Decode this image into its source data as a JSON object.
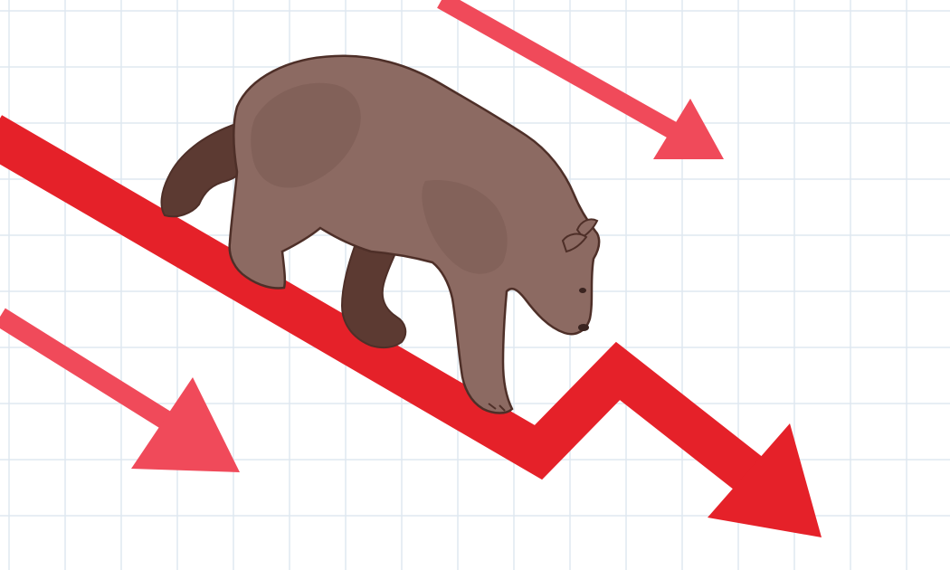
{
  "colors": {
    "background": "#ffffff",
    "grid_line": "#dfe8f0",
    "main_arrow": "#e52129",
    "secondary_arrow": "#f04a5a",
    "bear_body": "#8c6a62",
    "bear_shadow": "#5c3a32",
    "bear_outline": "#4e2f28"
  },
  "illustration": {
    "subject": "bear",
    "trend": "downward",
    "arrow_count": 3
  }
}
